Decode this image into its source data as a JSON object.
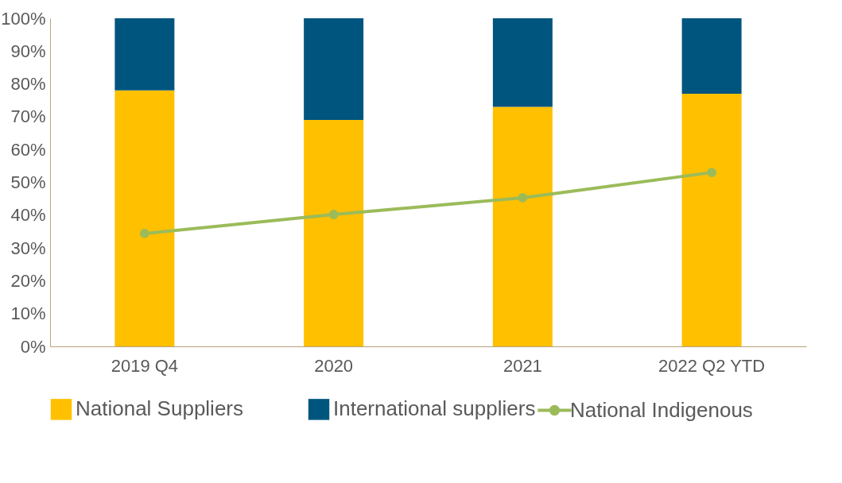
{
  "chart_data": {
    "type": "bar",
    "stacked": true,
    "categories": [
      "2019 Q4",
      "2020",
      "2021",
      "2022 Q2 YTD"
    ],
    "series": [
      {
        "name": "National Suppliers",
        "color": "#ffc000",
        "values": [
          78,
          69,
          73,
          77
        ]
      },
      {
        "name": "International suppliers",
        "color": "#00557f",
        "values": [
          22,
          31,
          27,
          23
        ]
      },
      {
        "name": "National Indigenous",
        "type": "line",
        "color": "#9bbb59",
        "marker": "circle",
        "values": [
          34.4,
          40.2,
          45.3,
          53
        ]
      }
    ],
    "ylim": [
      0,
      100
    ],
    "yticks": [
      {
        "value": 0,
        "label": "0%"
      },
      {
        "value": 10,
        "label": "10%"
      },
      {
        "value": 20,
        "label": "20%"
      },
      {
        "value": 30,
        "label": "30%"
      },
      {
        "value": 40,
        "label": "40%"
      },
      {
        "value": 50,
        "label": "50%"
      },
      {
        "value": 60,
        "label": "60%"
      },
      {
        "value": 70,
        "label": "70%"
      },
      {
        "value": 80,
        "label": "80%"
      },
      {
        "value": 90,
        "label": "90%"
      },
      {
        "value": 100,
        "label": "100%"
      }
    ],
    "grid": false,
    "legend": "bottom"
  }
}
